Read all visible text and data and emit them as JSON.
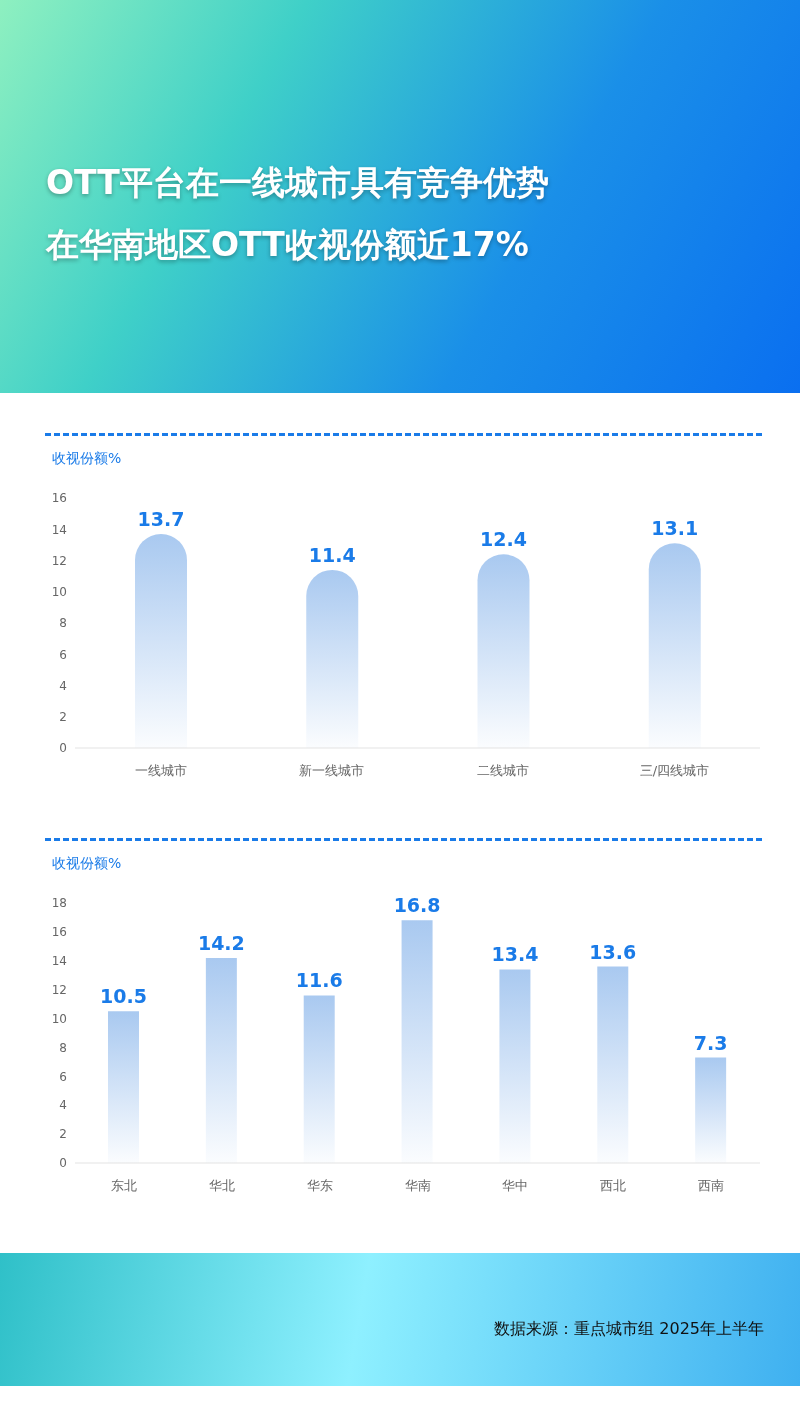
{
  "chart_data": [
    {
      "type": "bar",
      "title": "OTT平台在一线城市具有竞争优势",
      "subtitle": "在华南地区OTT收视份额近17%",
      "ylabel": "收视份额%",
      "categories": [
        "一线城市",
        "新一线城市",
        "二线城市",
        "三/四线城市"
      ],
      "values": [
        13.7,
        11.4,
        12.4,
        13.1
      ],
      "color": "#a9c9f0",
      "ylim": [
        0,
        16
      ],
      "yticks": [
        0,
        2,
        4,
        6,
        8,
        10,
        12,
        14,
        16
      ],
      "data_labels": true
    },
    {
      "type": "bar",
      "ylabel": "收视份额%",
      "categories": [
        "东北",
        "华北",
        "华东",
        "华南",
        "华中",
        "西北",
        "西南"
      ],
      "values": [
        10.5,
        14.2,
        11.6,
        16.8,
        13.4,
        13.6,
        7.3
      ],
      "color": "#a9c9f0",
      "ylim": [
        0,
        18
      ],
      "yticks": [
        0,
        2,
        4,
        6,
        8,
        10,
        12,
        14,
        16,
        18
      ],
      "data_labels": true,
      "annotations": [
        "数据来源：重点城市组 2025年上半年"
      ]
    }
  ]
}
